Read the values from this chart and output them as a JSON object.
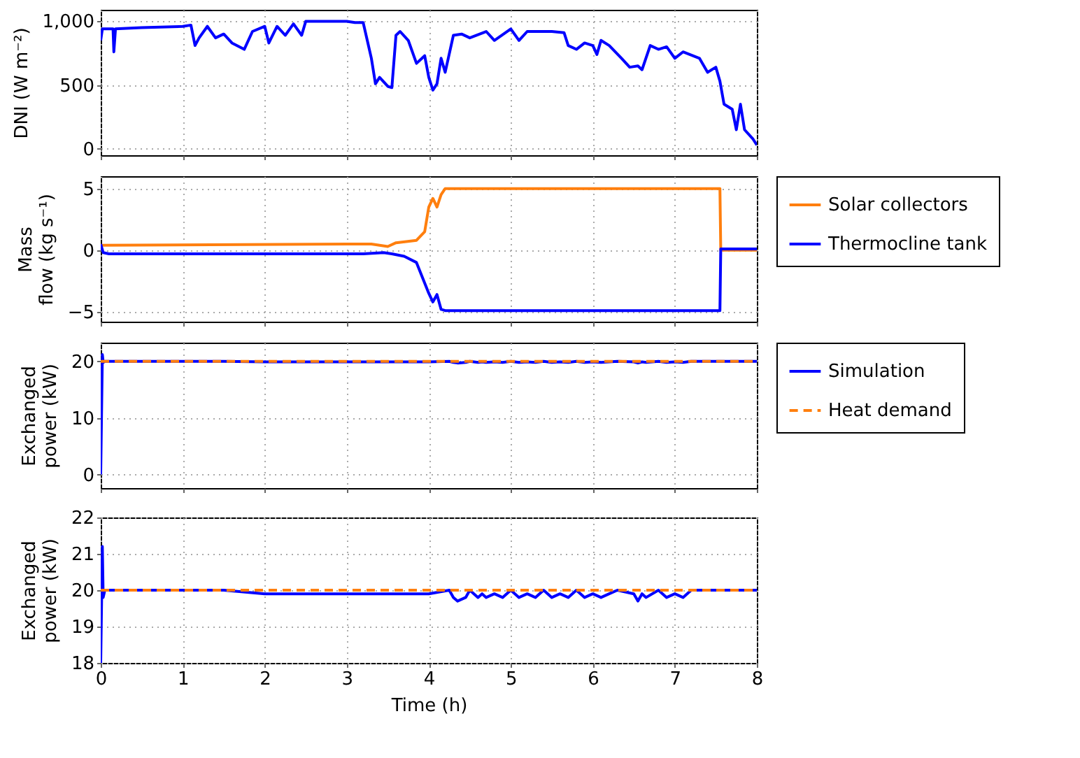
{
  "chart_data": [
    {
      "type": "line",
      "ylabel": "DNI (W m⁻²)",
      "xlim": [
        0,
        8
      ],
      "xticks": [
        0,
        1,
        2,
        3,
        4,
        5,
        6,
        7,
        8
      ],
      "ylim": [
        -50,
        1090
      ],
      "yticks": [
        0,
        500,
        {
          "value": 1000,
          "label": "1,000"
        }
      ],
      "grid": true,
      "tick_labels": "y",
      "legend": false,
      "series": [
        {
          "color": "#0000ff",
          "x": [
            0,
            0.02,
            0.15,
            0.16,
            0.18,
            0.5,
            1.0,
            1.1,
            1.15,
            1.2,
            1.3,
            1.4,
            1.5,
            1.6,
            1.75,
            1.85,
            2.0,
            2.05,
            2.15,
            2.25,
            2.35,
            2.45,
            2.5,
            3.0,
            3.1,
            3.2,
            3.25,
            3.3,
            3.35,
            3.4,
            3.5,
            3.55,
            3.6,
            3.65,
            3.75,
            3.85,
            3.95,
            4.0,
            4.05,
            4.1,
            4.15,
            4.2,
            4.3,
            4.4,
            4.5,
            4.7,
            4.8,
            5.0,
            5.1,
            5.2,
            5.5,
            5.65,
            5.7,
            5.8,
            5.9,
            6.0,
            6.05,
            6.1,
            6.2,
            6.35,
            6.45,
            6.55,
            6.6,
            6.7,
            6.8,
            6.9,
            7.0,
            7.1,
            7.3,
            7.4,
            7.5,
            7.55,
            7.6,
            7.7,
            7.75,
            7.8,
            7.85,
            7.95,
            8.0
          ],
          "values": [
            850,
            940,
            940,
            760,
            940,
            950,
            960,
            970,
            810,
            870,
            960,
            870,
            900,
            830,
            780,
            920,
            960,
            830,
            960,
            890,
            980,
            890,
            1000,
            1000,
            990,
            990,
            850,
            710,
            510,
            560,
            490,
            480,
            890,
            920,
            850,
            670,
            730,
            560,
            460,
            510,
            710,
            600,
            890,
            900,
            870,
            920,
            850,
            940,
            850,
            920,
            920,
            910,
            810,
            780,
            830,
            810,
            740,
            850,
            810,
            710,
            640,
            650,
            620,
            810,
            780,
            800,
            710,
            760,
            710,
            600,
            640,
            530,
            350,
            310,
            150,
            350,
            150,
            80,
            30
          ]
        }
      ]
    },
    {
      "type": "line",
      "ylabel": "Mass flow (kg s⁻¹)",
      "xlim": [
        0,
        8
      ],
      "xticks": [
        0,
        1,
        2,
        3,
        4,
        5,
        6,
        7,
        8
      ],
      "ylim": [
        -5.8,
        6
      ],
      "yticks": [
        {
          "value": -5,
          "label": "−5"
        },
        0,
        5
      ],
      "grid": true,
      "tick_labels": "y",
      "legend": "right",
      "series": [
        {
          "name": "Solar collectors",
          "color": "#ff7f0e",
          "x": [
            0,
            3.0,
            3.3,
            3.5,
            3.6,
            3.85,
            3.95,
            4.0,
            4.05,
            4.1,
            4.15,
            4.2,
            7.55,
            7.56,
            8
          ],
          "values": [
            0.4,
            0.5,
            0.5,
            0.3,
            0.6,
            0.8,
            1.5,
            3.5,
            4.2,
            3.5,
            4.5,
            5,
            5,
            0,
            0
          ]
        },
        {
          "name": "Thermocline tank",
          "color": "#0000ff",
          "x": [
            0,
            0.03,
            0.1,
            3.2,
            3.45,
            3.55,
            3.7,
            3.85,
            4.0,
            4.05,
            4.1,
            4.15,
            4.2,
            7.55,
            7.56,
            8
          ],
          "values": [
            0.5,
            -0.2,
            -0.3,
            -0.3,
            -0.2,
            -0.3,
            -0.5,
            -1,
            -3.5,
            -4.2,
            -3.6,
            -4.8,
            -4.9,
            -4.9,
            0.1,
            0.1
          ]
        }
      ]
    },
    {
      "type": "line",
      "ylabel": "Exchanged power (kW)",
      "xlim": [
        0,
        8
      ],
      "xticks": [
        0,
        1,
        2,
        3,
        4,
        5,
        6,
        7,
        8
      ],
      "ylim": [
        -2.4,
        23.3
      ],
      "yticks": [
        0,
        10,
        20
      ],
      "grid": true,
      "tick_labels": "y",
      "legend": "right",
      "series": [
        {
          "name": "Simulation",
          "color": "#0000ff",
          "line_style": "solid",
          "x": [
            0,
            0.02,
            0.03,
            0.05,
            0.5,
            1,
            1.5,
            2,
            2.5,
            3,
            3.5,
            4,
            4.25,
            4.3,
            4.35,
            4.45,
            4.5,
            4.6,
            4.65,
            4.7,
            4.8,
            4.9,
            5,
            5.1,
            5.2,
            5.3,
            5.4,
            5.5,
            5.6,
            5.7,
            5.8,
            5.9,
            6,
            6.1,
            6.2,
            6.3,
            6.5,
            6.55,
            6.6,
            6.65,
            6.8,
            6.9,
            7,
            7.1,
            7.2,
            7.5,
            8
          ],
          "values": [
            0,
            21.2,
            19.8,
            20,
            20,
            20,
            20,
            19.9,
            19.9,
            19.9,
            19.9,
            19.9,
            20,
            19.8,
            19.7,
            19.8,
            20,
            19.8,
            19.9,
            19.8,
            19.9,
            19.8,
            20,
            19.8,
            19.9,
            19.8,
            20,
            19.8,
            19.9,
            19.8,
            20,
            19.8,
            19.9,
            19.8,
            19.9,
            20,
            19.9,
            19.7,
            19.9,
            19.8,
            20,
            19.8,
            19.9,
            19.8,
            20,
            20,
            20
          ]
        },
        {
          "name": "Heat demand",
          "color": "#ff7f0e",
          "line_style": "dashed",
          "x": [
            0,
            8
          ],
          "values": [
            20,
            20
          ]
        }
      ]
    },
    {
      "type": "line",
      "ylabel": "Exchanged power (kW)",
      "xlabel": "Time (h)",
      "xlim": [
        0,
        8
      ],
      "xticks": [
        0,
        1,
        2,
        3,
        4,
        5,
        6,
        7,
        8
      ],
      "ylim": [
        18,
        22
      ],
      "yticks": [
        18,
        19,
        20,
        21,
        22
      ],
      "grid": true,
      "legend": false,
      "series": [
        {
          "color": "#0000ff",
          "line_style": "solid",
          "x": [
            0,
            0.02,
            0.03,
            0.05,
            0.5,
            1,
            1.5,
            2,
            2.5,
            3,
            3.5,
            4,
            4.25,
            4.3,
            4.35,
            4.45,
            4.5,
            4.6,
            4.65,
            4.7,
            4.8,
            4.9,
            5,
            5.1,
            5.2,
            5.3,
            5.4,
            5.5,
            5.6,
            5.7,
            5.8,
            5.9,
            6,
            6.1,
            6.2,
            6.3,
            6.5,
            6.55,
            6.6,
            6.65,
            6.8,
            6.9,
            7,
            7.1,
            7.2,
            7.5,
            8
          ],
          "values": [
            18,
            21.2,
            19.8,
            20,
            20,
            20,
            20,
            19.9,
            19.9,
            19.9,
            19.9,
            19.9,
            20,
            19.8,
            19.7,
            19.8,
            20,
            19.8,
            19.9,
            19.8,
            19.9,
            19.8,
            20,
            19.8,
            19.9,
            19.8,
            20,
            19.8,
            19.9,
            19.8,
            20,
            19.8,
            19.9,
            19.8,
            19.9,
            20,
            19.9,
            19.7,
            19.9,
            19.8,
            20,
            19.8,
            19.9,
            19.8,
            20,
            20,
            20
          ]
        },
        {
          "color": "#ff7f0e",
          "line_style": "dashed",
          "x": [
            0,
            8
          ],
          "values": [
            20,
            20
          ]
        }
      ]
    }
  ]
}
